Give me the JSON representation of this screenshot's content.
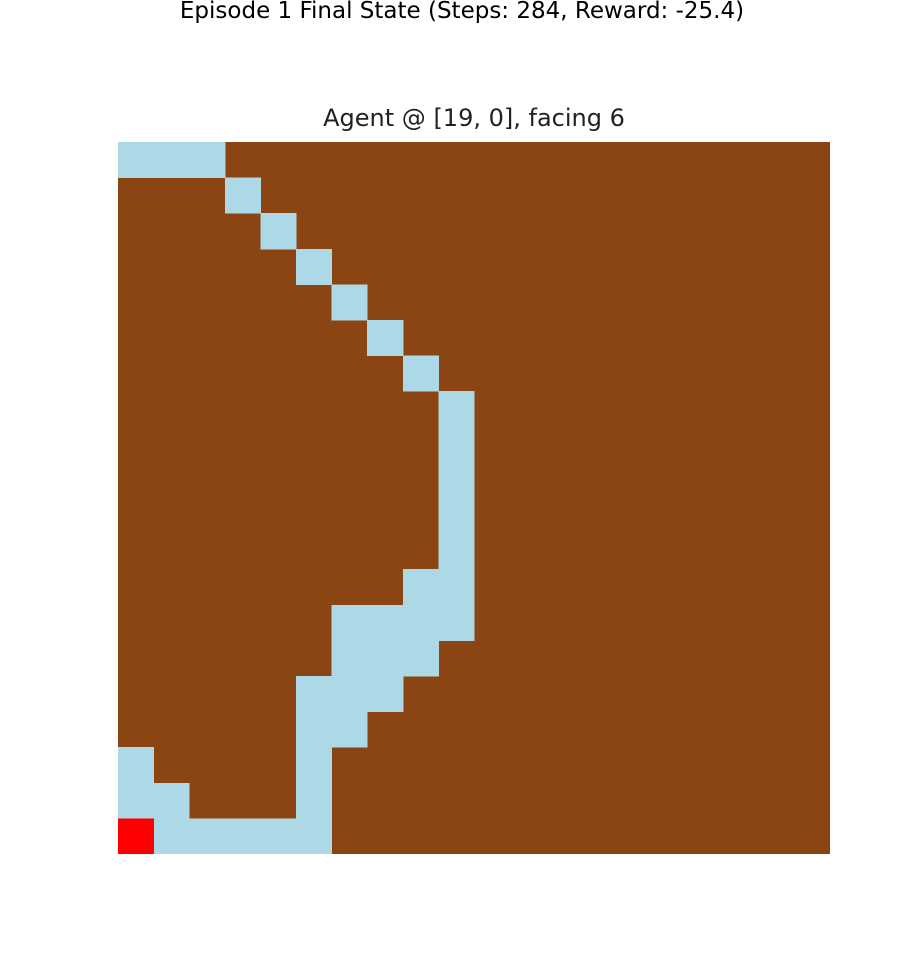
{
  "figure": {
    "suptitle": "Episode 1 Final State (Steps: 284, Reward: -25.4)",
    "axes_title": "Agent @ [19, 0], facing 6"
  },
  "grid": {
    "rows": 20,
    "cols": 20,
    "colors": {
      "wall": "#8b4513",
      "visited": "#add8e6",
      "agent": "#ff0000"
    },
    "agent_cell": [
      19,
      0
    ],
    "visited_cells": [
      [
        0,
        0
      ],
      [
        0,
        1
      ],
      [
        0,
        2
      ],
      [
        1,
        3
      ],
      [
        2,
        4
      ],
      [
        3,
        5
      ],
      [
        4,
        6
      ],
      [
        5,
        7
      ],
      [
        6,
        8
      ],
      [
        7,
        9
      ],
      [
        8,
        9
      ],
      [
        9,
        9
      ],
      [
        10,
        9
      ],
      [
        11,
        9
      ],
      [
        12,
        8
      ],
      [
        12,
        9
      ],
      [
        13,
        6
      ],
      [
        13,
        7
      ],
      [
        13,
        8
      ],
      [
        13,
        9
      ],
      [
        14,
        6
      ],
      [
        14,
        7
      ],
      [
        14,
        8
      ],
      [
        15,
        5
      ],
      [
        15,
        6
      ],
      [
        15,
        7
      ],
      [
        16,
        5
      ],
      [
        16,
        6
      ],
      [
        17,
        0
      ],
      [
        17,
        5
      ],
      [
        18,
        0
      ],
      [
        18,
        1
      ],
      [
        18,
        5
      ],
      [
        19,
        1
      ],
      [
        19,
        2
      ],
      [
        19,
        3
      ],
      [
        19,
        4
      ],
      [
        19,
        5
      ]
    ]
  }
}
